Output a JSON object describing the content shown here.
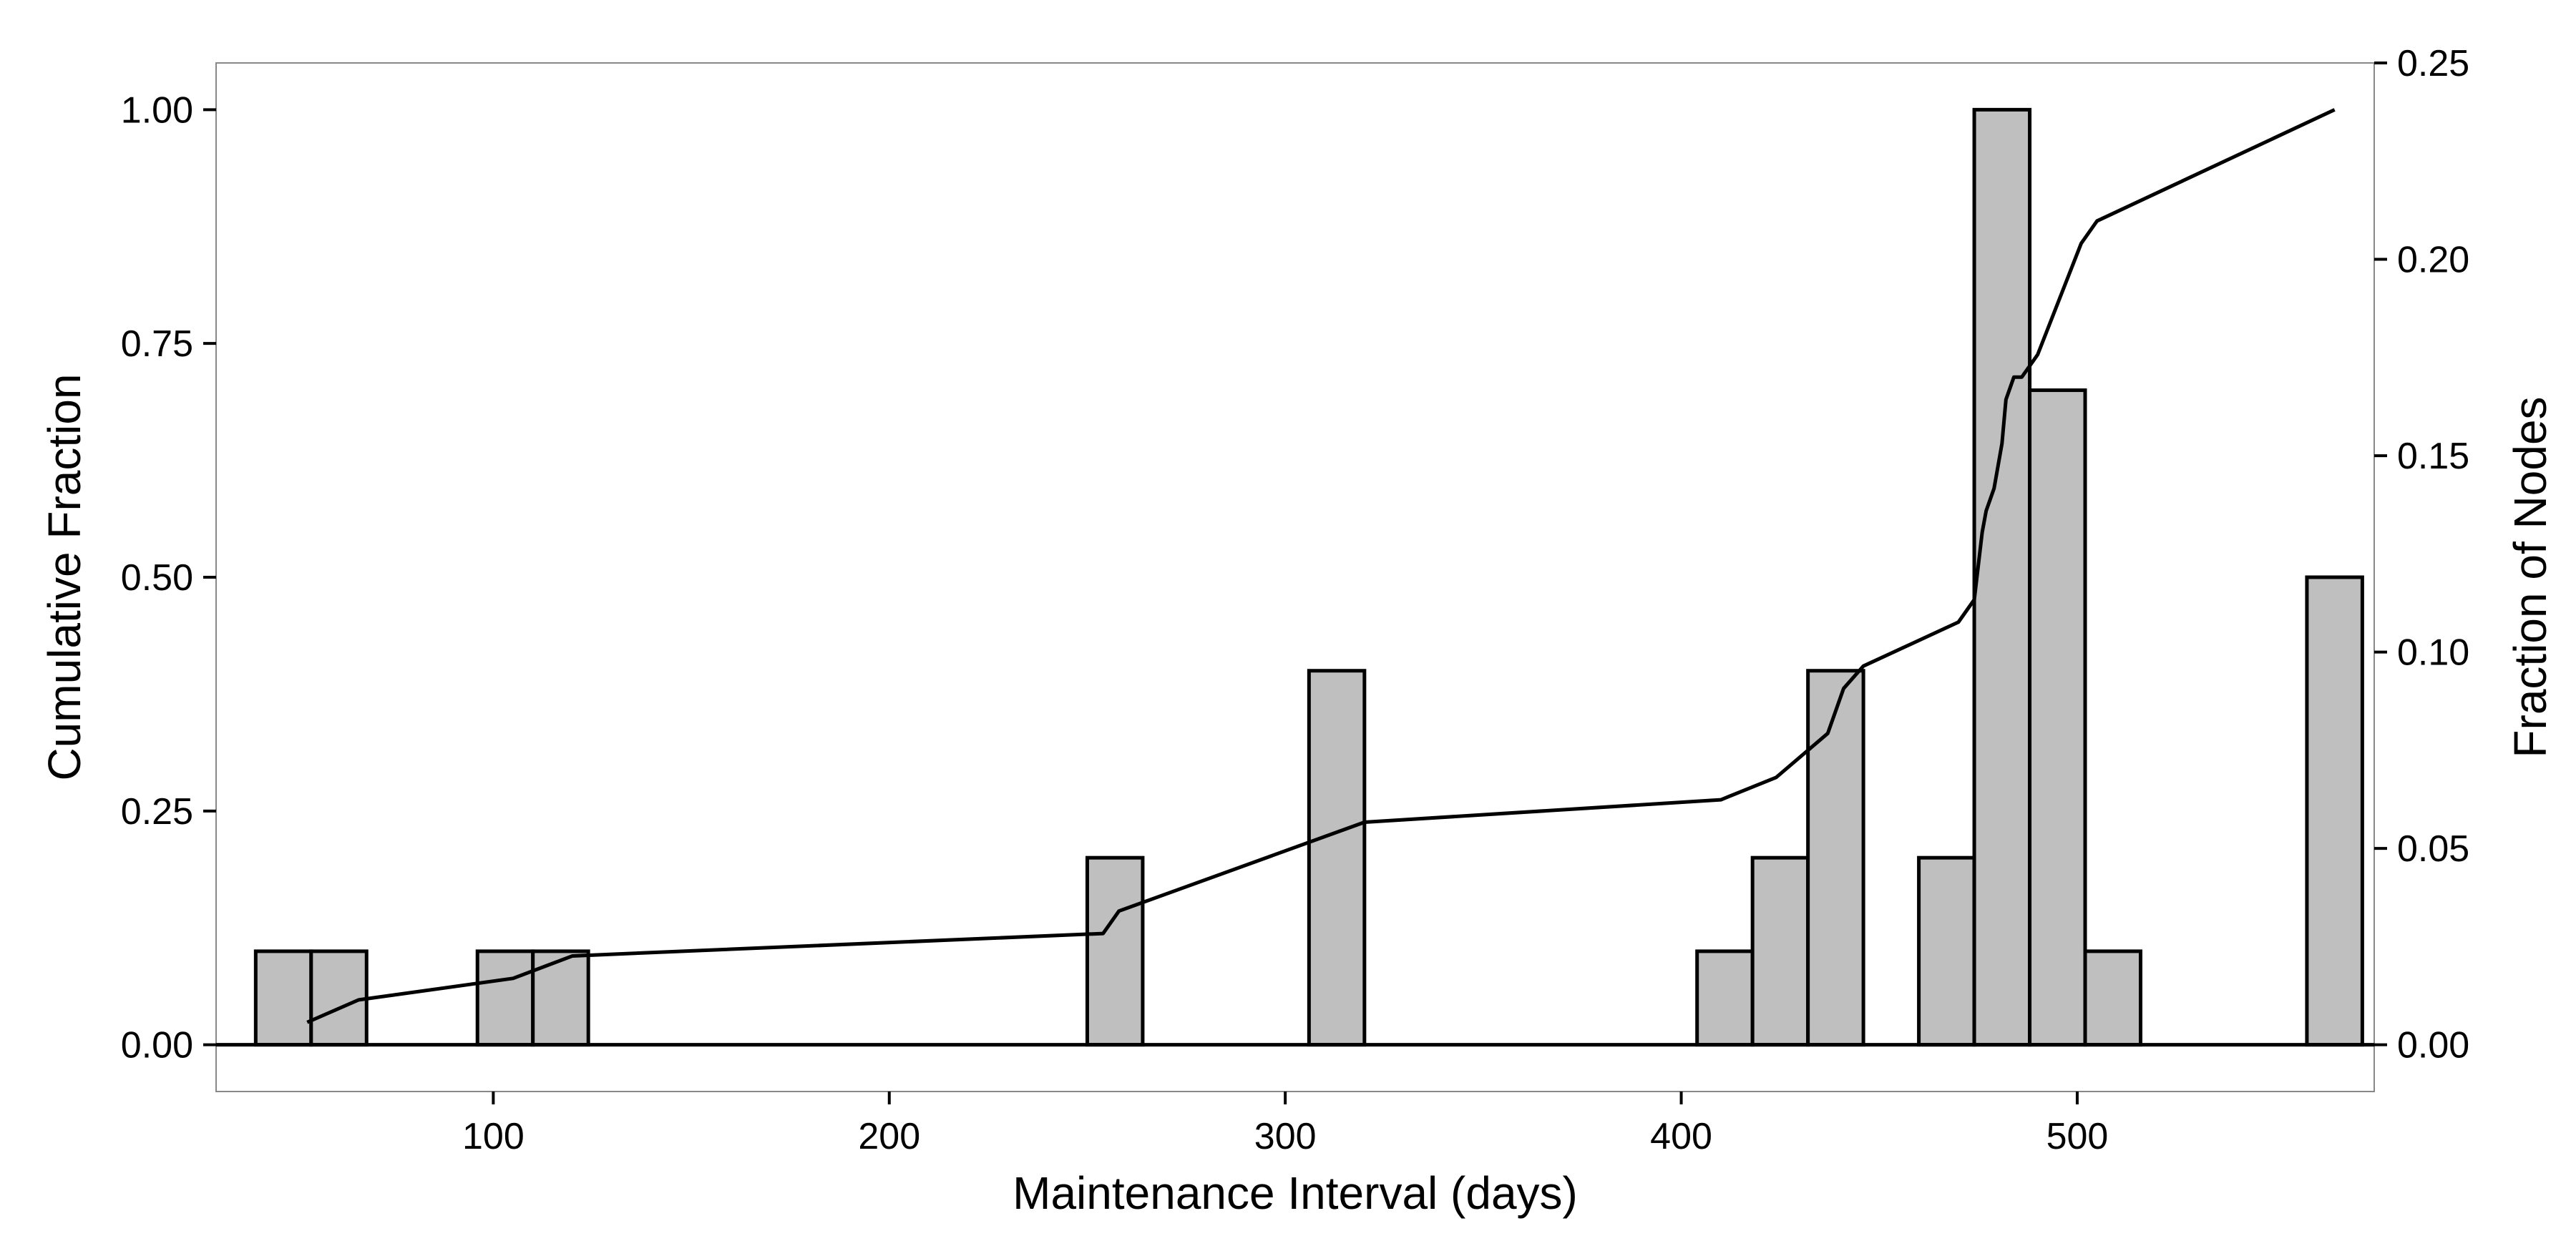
{
  "chart_data": {
    "type": "bar",
    "title": "",
    "xlabel": "Maintenance Interval (days)",
    "ylabel_left": "Cumulative Fraction",
    "ylabel_right": "Fraction of Nodes",
    "xlim": [
      30,
      575
    ],
    "ylim_left": [
      -0.05,
      1.05
    ],
    "ylim_right": [
      -0.0119,
      0.25
    ],
    "x_ticks": [
      100,
      200,
      300,
      400,
      500
    ],
    "y_ticks_left": [
      0.0,
      0.25,
      0.5,
      0.75,
      1.0
    ],
    "y_ticks_left_labels": [
      "0.00",
      "0.25",
      "0.50",
      "0.75",
      "1.00"
    ],
    "y_ticks_right": [
      0.0,
      0.05,
      0.1,
      0.15,
      0.2,
      0.25
    ],
    "y_ticks_right_labels": [
      "0.00",
      "0.05",
      "0.10",
      "0.15",
      "0.20",
      "0.25"
    ],
    "grid": false,
    "colors": {
      "bar_fill": "#bfbfbf",
      "bar_stroke": "#000000",
      "line": "#000000",
      "frame": "#888888"
    },
    "histogram": {
      "bin_width": 14,
      "bins": [
        {
          "x_start": 40,
          "cumulative_scale_height": 0.1
        },
        {
          "x_start": 54,
          "cumulative_scale_height": 0.1
        },
        {
          "x_start": 96,
          "cumulative_scale_height": 0.1
        },
        {
          "x_start": 110,
          "cumulative_scale_height": 0.1
        },
        {
          "x_start": 250,
          "cumulative_scale_height": 0.2
        },
        {
          "x_start": 306,
          "cumulative_scale_height": 0.4
        },
        {
          "x_start": 404,
          "cumulative_scale_height": 0.1
        },
        {
          "x_start": 418,
          "cumulative_scale_height": 0.2
        },
        {
          "x_start": 432,
          "cumulative_scale_height": 0.4
        },
        {
          "x_start": 460,
          "cumulative_scale_height": 0.2
        },
        {
          "x_start": 474,
          "cumulative_scale_height": 1.0
        },
        {
          "x_start": 488,
          "cumulative_scale_height": 0.7
        },
        {
          "x_start": 502,
          "cumulative_scale_height": 0.1
        },
        {
          "x_start": 558,
          "cumulative_scale_height": 0.5
        }
      ]
    },
    "cumulative_line": {
      "x": [
        53,
        66,
        105,
        120,
        254,
        258,
        320,
        410,
        424,
        437,
        441,
        446,
        470,
        474,
        476,
        477,
        479,
        481,
        482,
        484,
        486,
        490,
        501,
        505,
        565
      ],
      "y": [
        0.024,
        0.048,
        0.071,
        0.095,
        0.119,
        0.143,
        0.238,
        0.262,
        0.286,
        0.333,
        0.381,
        0.405,
        0.452,
        0.476,
        0.548,
        0.571,
        0.595,
        0.643,
        0.69,
        0.714,
        0.714,
        0.738,
        0.857,
        0.881,
        1.0
      ]
    }
  }
}
